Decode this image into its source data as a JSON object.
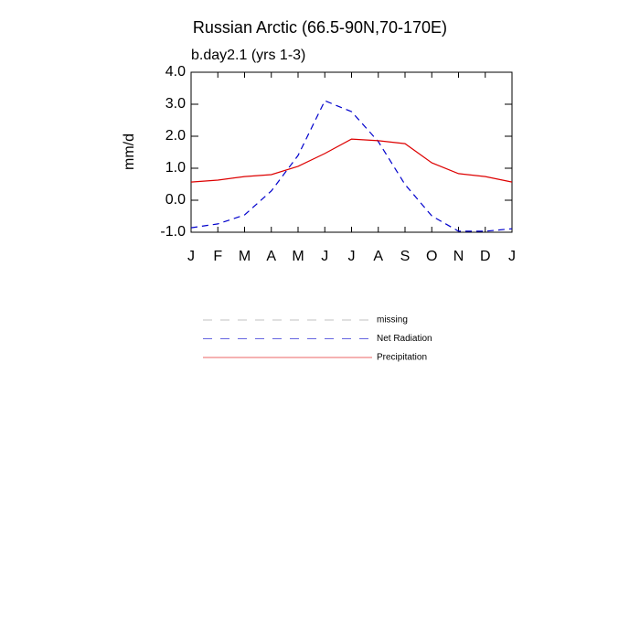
{
  "chart_data": {
    "type": "line",
    "title": "Russian Arctic (66.5-90N,70-170E)",
    "subtitle": "b.day2.1 (yrs 1-3)",
    "y_label": "mm/d",
    "categories": [
      "J",
      "F",
      "M",
      "A",
      "M",
      "J",
      "J",
      "A",
      "S",
      "O",
      "N",
      "D",
      "J"
    ],
    "ylim": [
      -1,
      4
    ],
    "yticks": [
      {
        "value": -1,
        "label": "-1.0"
      },
      {
        "value": 0,
        "label": "0.0"
      },
      {
        "value": 1,
        "label": "1.0"
      },
      {
        "value": 2,
        "label": "2.0"
      },
      {
        "value": 3,
        "label": "3.0"
      },
      {
        "value": 4,
        "label": "4.0"
      }
    ],
    "series": [
      {
        "name": "missing",
        "color": "#999999",
        "dash": true,
        "values": [
          null,
          null,
          null,
          null,
          null,
          null,
          null,
          null,
          null,
          null,
          null,
          null,
          null
        ]
      },
      {
        "name": "Net Radiation",
        "color": "#0000cc",
        "dash": true,
        "values": [
          -0.86,
          -0.74,
          -0.46,
          0.29,
          1.4,
          3.11,
          2.77,
          1.83,
          0.49,
          -0.49,
          -0.97,
          -0.97,
          -0.89
        ]
      },
      {
        "name": "Precipitation",
        "color": "#dd0000",
        "dash": false,
        "values": [
          0.57,
          0.63,
          0.74,
          0.8,
          1.06,
          1.46,
          1.91,
          1.86,
          1.77,
          1.17,
          0.83,
          0.74,
          0.57
        ]
      }
    ]
  }
}
